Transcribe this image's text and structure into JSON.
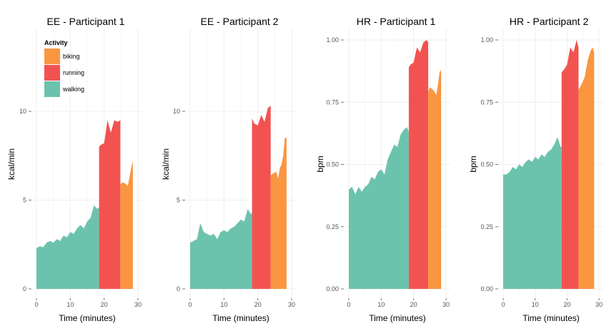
{
  "colors": {
    "walking": "#6cc3ad",
    "running": "#f25350",
    "biking": "#fa9640",
    "grid": "#efefef",
    "text": "#000000",
    "tick_text": "#555555"
  },
  "legend": {
    "title": "Activity",
    "items": [
      {
        "label": "biking",
        "color": "#fa9640"
      },
      {
        "label": "running",
        "color": "#f25350"
      },
      {
        "label": "walking",
        "color": "#6cc3ad"
      }
    ],
    "placement": "top-left of first panel"
  },
  "chart_data": [
    {
      "type": "area",
      "title": "EE - Participant 1",
      "xlabel": "Time (minutes)",
      "ylabel": "kcal/min",
      "xlim": [
        0,
        30
      ],
      "ylim": [
        0,
        14
      ],
      "xticks": [
        0,
        10,
        20,
        30
      ],
      "yticks": [
        {
          "v": 0,
          "label": "0"
        },
        {
          "v": 5,
          "label": "5"
        },
        {
          "v": 10,
          "label": "10"
        }
      ],
      "grid": true,
      "series": [
        {
          "name": "walking",
          "points": [
            [
              0,
              2.3
            ],
            [
              1,
              2.4
            ],
            [
              2,
              2.35
            ],
            [
              3,
              2.6
            ],
            [
              4,
              2.7
            ],
            [
              5,
              2.6
            ],
            [
              6,
              2.8
            ],
            [
              7,
              2.7
            ],
            [
              8,
              3.0
            ],
            [
              9,
              2.9
            ],
            [
              10,
              3.2
            ],
            [
              11,
              3.1
            ],
            [
              12,
              3.4
            ],
            [
              13,
              3.6
            ],
            [
              14,
              3.4
            ],
            [
              15,
              3.8
            ],
            [
              16,
              4.0
            ],
            [
              17,
              4.7
            ],
            [
              18,
              4.5
            ],
            [
              18.5,
              4.6
            ]
          ]
        },
        {
          "name": "running",
          "points": [
            [
              18.5,
              8.0
            ],
            [
              19,
              8.1
            ],
            [
              20,
              8.2
            ],
            [
              21,
              9.5
            ],
            [
              22,
              8.8
            ],
            [
              23,
              9.5
            ],
            [
              24,
              9.4
            ],
            [
              24.8,
              9.5
            ]
          ]
        },
        {
          "name": "biking",
          "points": [
            [
              24.8,
              5.9
            ],
            [
              25.5,
              6.0
            ],
            [
              26.5,
              5.9
            ],
            [
              27,
              5.8
            ],
            [
              27.5,
              6.3
            ],
            [
              28,
              6.8
            ],
            [
              28.5,
              7.2
            ]
          ]
        }
      ]
    },
    {
      "type": "area",
      "title": "EE - Participant 2",
      "xlabel": "Time (minutes)",
      "ylabel": "kcal/min",
      "xlim": [
        0,
        30
      ],
      "ylim": [
        0,
        14
      ],
      "xticks": [
        0,
        10,
        20,
        30
      ],
      "yticks": [
        {
          "v": 0,
          "label": "0"
        },
        {
          "v": 5,
          "label": "5"
        },
        {
          "v": 10,
          "label": "10"
        }
      ],
      "grid": true,
      "series": [
        {
          "name": "walking",
          "points": [
            [
              0,
              2.6
            ],
            [
              1,
              2.7
            ],
            [
              2,
              2.8
            ],
            [
              3,
              3.7
            ],
            [
              4,
              3.2
            ],
            [
              5,
              3.1
            ],
            [
              6,
              3.0
            ],
            [
              7,
              3.1
            ],
            [
              8,
              2.8
            ],
            [
              9,
              3.2
            ],
            [
              10,
              3.3
            ],
            [
              11,
              3.2
            ],
            [
              12,
              3.4
            ],
            [
              13,
              3.5
            ],
            [
              14,
              3.7
            ],
            [
              15,
              3.9
            ],
            [
              16,
              3.8
            ],
            [
              17,
              4.5
            ],
            [
              18,
              4.2
            ],
            [
              18.3,
              4.3
            ]
          ]
        },
        {
          "name": "running",
          "points": [
            [
              18.3,
              9.6
            ],
            [
              19,
              9.3
            ],
            [
              20,
              9.2
            ],
            [
              21,
              9.8
            ],
            [
              22,
              9.4
            ],
            [
              23,
              10.2
            ],
            [
              23.8,
              10.3
            ]
          ]
        },
        {
          "name": "biking",
          "points": [
            [
              23.8,
              6.4
            ],
            [
              24.5,
              6.5
            ],
            [
              25.5,
              6.6
            ],
            [
              26,
              6.2
            ],
            [
              26.5,
              6.8
            ],
            [
              27,
              7.0
            ],
            [
              27.5,
              7.5
            ],
            [
              28,
              8.5
            ],
            [
              28.5,
              8.5
            ]
          ]
        }
      ]
    },
    {
      "type": "area",
      "title": "HR - Participant 1",
      "xlabel": "Time (minutes)",
      "ylabel": "bpm",
      "xlim": [
        0,
        30
      ],
      "ylim": [
        0,
        1.15
      ],
      "xticks": [
        0,
        10,
        20,
        30
      ],
      "yticks": [
        {
          "v": 0,
          "label": "0.00"
        },
        {
          "v": 0.25,
          "label": "0.25"
        },
        {
          "v": 0.5,
          "label": "0.50"
        },
        {
          "v": 0.75,
          "label": "0.75"
        },
        {
          "v": 1.0,
          "label": "1.00"
        }
      ],
      "grid": true,
      "series": [
        {
          "name": "walking",
          "points": [
            [
              0,
              0.4
            ],
            [
              1,
              0.41
            ],
            [
              2,
              0.38
            ],
            [
              3,
              0.41
            ],
            [
              4,
              0.39
            ],
            [
              5,
              0.41
            ],
            [
              6,
              0.42
            ],
            [
              7,
              0.45
            ],
            [
              8,
              0.44
            ],
            [
              9,
              0.47
            ],
            [
              10,
              0.48
            ],
            [
              11,
              0.46
            ],
            [
              12,
              0.52
            ],
            [
              13,
              0.55
            ],
            [
              14,
              0.58
            ],
            [
              15,
              0.57
            ],
            [
              16,
              0.62
            ],
            [
              17,
              0.64
            ],
            [
              18,
              0.65
            ],
            [
              18.5,
              0.63
            ]
          ]
        },
        {
          "name": "running",
          "points": [
            [
              18.5,
              0.89
            ],
            [
              19,
              0.9
            ],
            [
              20,
              0.91
            ],
            [
              21,
              0.97
            ],
            [
              22,
              0.95
            ],
            [
              23,
              0.99
            ],
            [
              24,
              1.0
            ],
            [
              24.5,
              0.99
            ]
          ]
        },
        {
          "name": "biking",
          "points": [
            [
              24.5,
              0.79
            ],
            [
              25,
              0.81
            ],
            [
              26,
              0.8
            ],
            [
              27,
              0.78
            ],
            [
              27.5,
              0.82
            ],
            [
              28,
              0.87
            ],
            [
              28.5,
              0.88
            ]
          ]
        }
      ]
    },
    {
      "type": "area",
      "title": "HR - Participant 2",
      "xlabel": "Time (minutes)",
      "ylabel": "bpm",
      "xlim": [
        0,
        30
      ],
      "ylim": [
        0,
        1.15
      ],
      "xticks": [
        0,
        10,
        20,
        30
      ],
      "yticks": [
        {
          "v": 0,
          "label": "0.00"
        },
        {
          "v": 0.25,
          "label": "0.25"
        },
        {
          "v": 0.5,
          "label": "0.50"
        },
        {
          "v": 0.75,
          "label": "0.75"
        },
        {
          "v": 1.0,
          "label": "1.00"
        }
      ],
      "grid": true,
      "series": [
        {
          "name": "walking",
          "points": [
            [
              0,
              0.46
            ],
            [
              1,
              0.46
            ],
            [
              2,
              0.47
            ],
            [
              3,
              0.49
            ],
            [
              4,
              0.48
            ],
            [
              5,
              0.5
            ],
            [
              6,
              0.49
            ],
            [
              7,
              0.51
            ],
            [
              8,
              0.52
            ],
            [
              9,
              0.51
            ],
            [
              10,
              0.53
            ],
            [
              11,
              0.52
            ],
            [
              12,
              0.54
            ],
            [
              13,
              0.53
            ],
            [
              14,
              0.55
            ],
            [
              15,
              0.56
            ],
            [
              16,
              0.58
            ],
            [
              17,
              0.61
            ],
            [
              18,
              0.57
            ],
            [
              18.3,
              0.57
            ]
          ]
        },
        {
          "name": "running",
          "points": [
            [
              18.3,
              0.87
            ],
            [
              19,
              0.88
            ],
            [
              20,
              0.9
            ],
            [
              21,
              0.97
            ],
            [
              22,
              0.95
            ],
            [
              23,
              1.0
            ],
            [
              23.6,
              0.97
            ]
          ]
        },
        {
          "name": "biking",
          "points": [
            [
              23.6,
              0.8
            ],
            [
              24.5,
              0.82
            ],
            [
              25.5,
              0.85
            ],
            [
              26.5,
              0.92
            ],
            [
              27.5,
              0.96
            ],
            [
              28,
              0.97
            ],
            [
              28.5,
              0.95
            ]
          ]
        }
      ]
    }
  ]
}
